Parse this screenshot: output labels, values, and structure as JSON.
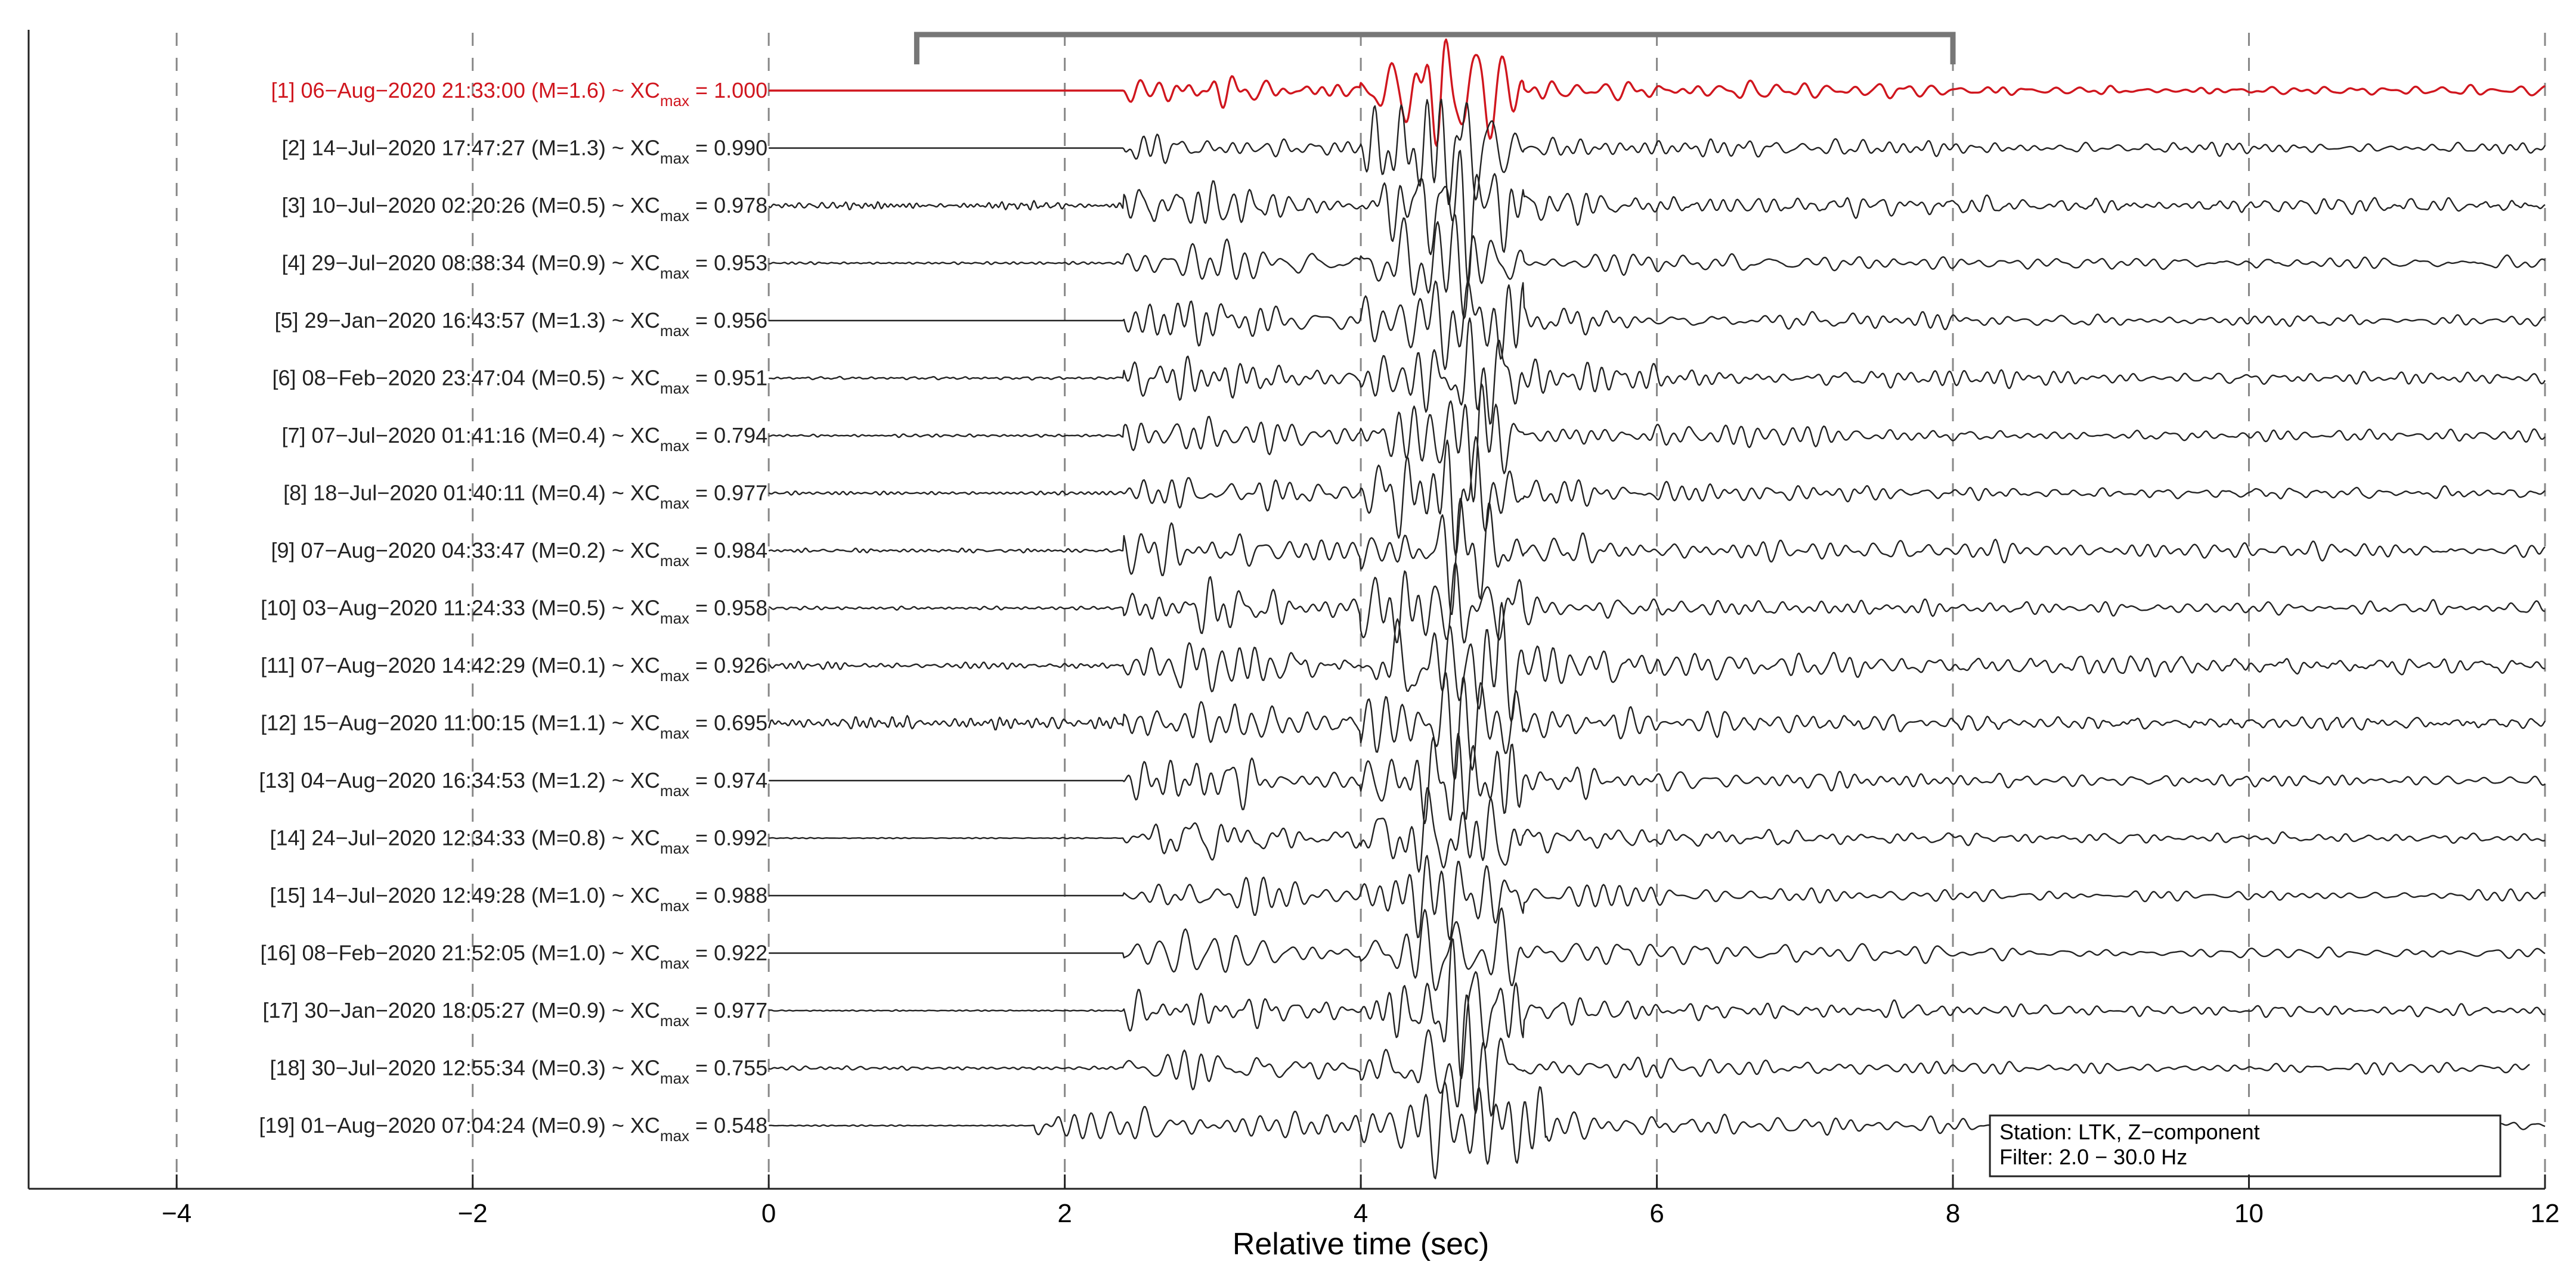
{
  "chart_data": {
    "type": "line",
    "chart_subtype": "waveform_stack",
    "xlabel": "Relative time (sec)",
    "xlim": [
      -5,
      12
    ],
    "xticks": [
      -4,
      -2,
      0,
      2,
      4,
      6,
      8,
      10,
      12
    ],
    "xtick_labels": [
      "−4",
      "−2",
      "0",
      "2",
      "4",
      "6",
      "8",
      "10",
      "12"
    ],
    "grid": "vertical dashed at x ticks",
    "colors": {
      "reference_trace": "#d0161e",
      "trace": "#222222",
      "grid": "#888888",
      "bracket": "#777777"
    },
    "bracket": {
      "x_start": 1.0,
      "x_end": 8.0
    },
    "info_box": {
      "placement": "bottom-right",
      "line1": "Station: LTK, Z−component",
      "line2": "Filter: 2.0 − 30.0 Hz"
    },
    "traces": [
      {
        "index": 1,
        "label": "[1] 06−Aug−2020 21:33:00 (M=1.6) ~ XC",
        "xc_value": "1.000",
        "highlight": true,
        "waveform": {
          "x_start": 0.0,
          "x_end": 12.0,
          "onset": 2.4,
          "peak_time": 4.8,
          "amplitude": 1.0,
          "pre_noise": 0.0,
          "coda_amp": 0.22
        }
      },
      {
        "index": 2,
        "label": "[2] 14−Jul−2020 17:47:27 (M=1.3) ~ XC",
        "xc_value": "0.990",
        "waveform": {
          "x_start": 0.0,
          "x_end": 12.0,
          "onset": 2.4,
          "peak_time": 4.8,
          "amplitude": 1.0,
          "pre_noise": 0.0,
          "coda_amp": 0.25
        }
      },
      {
        "index": 3,
        "label": "[3] 10−Jul−2020 02:20:26 (M=0.5) ~ XC",
        "xc_value": "0.978",
        "waveform": {
          "x_start": 0.0,
          "x_end": 12.0,
          "onset": 2.4,
          "peak_time": 4.8,
          "amplitude": 1.0,
          "pre_noise": 0.12,
          "coda_amp": 0.3
        }
      },
      {
        "index": 4,
        "label": "[4] 29−Jul−2020 08:38:34 (M=0.9) ~ XC",
        "xc_value": "0.953",
        "waveform": {
          "x_start": 0.0,
          "x_end": 12.0,
          "onset": 2.4,
          "peak_time": 4.8,
          "amplitude": 1.0,
          "pre_noise": 0.04,
          "coda_amp": 0.25
        }
      },
      {
        "index": 5,
        "label": "[5] 29−Jan−2020 16:43:57 (M=1.3) ~ XC",
        "xc_value": "0.956",
        "waveform": {
          "x_start": 0.0,
          "x_end": 12.0,
          "onset": 2.4,
          "peak_time": 4.8,
          "amplitude": 1.0,
          "pre_noise": 0.0,
          "coda_amp": 0.25
        }
      },
      {
        "index": 6,
        "label": "[6] 08−Feb−2020 23:47:04 (M=0.5) ~ XC",
        "xc_value": "0.951",
        "waveform": {
          "x_start": 0.0,
          "x_end": 12.0,
          "onset": 2.4,
          "peak_time": 4.8,
          "amplitude": 1.0,
          "pre_noise": 0.06,
          "coda_amp": 0.28
        }
      },
      {
        "index": 7,
        "label": "[7] 07−Jul−2020 01:41:16 (M=0.4) ~ XC",
        "xc_value": "0.794",
        "waveform": {
          "x_start": 0.0,
          "x_end": 12.0,
          "onset": 2.4,
          "peak_time": 4.8,
          "amplitude": 1.0,
          "pre_noise": 0.05,
          "coda_amp": 0.3
        }
      },
      {
        "index": 8,
        "label": "[8] 18−Jul−2020 01:40:11 (M=0.4) ~ XC",
        "xc_value": "0.977",
        "waveform": {
          "x_start": 0.0,
          "x_end": 12.0,
          "onset": 2.4,
          "peak_time": 4.8,
          "amplitude": 1.0,
          "pre_noise": 0.07,
          "coda_amp": 0.28
        }
      },
      {
        "index": 9,
        "label": "[9] 07−Aug−2020 04:33:47 (M=0.2) ~ XC",
        "xc_value": "0.984",
        "waveform": {
          "x_start": 0.0,
          "x_end": 12.0,
          "onset": 2.4,
          "peak_time": 4.8,
          "amplitude": 1.0,
          "pre_noise": 0.06,
          "coda_amp": 0.3
        }
      },
      {
        "index": 10,
        "label": "[10] 03−Aug−2020 11:24:33 (M=0.5) ~ XC",
        "xc_value": "0.958",
        "waveform": {
          "x_start": 0.0,
          "x_end": 12.0,
          "onset": 2.4,
          "peak_time": 4.8,
          "amplitude": 1.0,
          "pre_noise": 0.06,
          "coda_amp": 0.28
        }
      },
      {
        "index": 11,
        "label": "[11] 07−Aug−2020 14:42:29 (M=0.1) ~ XC",
        "xc_value": "0.926",
        "waveform": {
          "x_start": 0.0,
          "x_end": 12.0,
          "onset": 2.4,
          "peak_time": 4.8,
          "amplitude": 1.0,
          "pre_noise": 0.14,
          "coda_amp": 0.34
        }
      },
      {
        "index": 12,
        "label": "[12] 15−Aug−2020 11:00:15 (M=1.1) ~ XC",
        "xc_value": "0.695",
        "waveform": {
          "x_start": 0.0,
          "x_end": 12.0,
          "onset": 2.4,
          "peak_time": 4.8,
          "amplitude": 1.0,
          "pre_noise": 0.22,
          "coda_amp": 0.3
        }
      },
      {
        "index": 13,
        "label": "[13] 04−Aug−2020 16:34:53 (M=1.2) ~ XC",
        "xc_value": "0.974",
        "waveform": {
          "x_start": 0.0,
          "x_end": 12.0,
          "onset": 2.4,
          "peak_time": 4.8,
          "amplitude": 1.0,
          "pre_noise": 0.0,
          "coda_amp": 0.25
        }
      },
      {
        "index": 14,
        "label": "[14] 24−Jul−2020 12:34:33 (M=0.8) ~ XC",
        "xc_value": "0.992",
        "waveform": {
          "x_start": 0.0,
          "x_end": 12.0,
          "onset": 2.4,
          "peak_time": 4.8,
          "amplitude": 1.0,
          "pre_noise": 0.02,
          "coda_amp": 0.26
        }
      },
      {
        "index": 15,
        "label": "[15] 14−Jul−2020 12:49:28 (M=1.0) ~ XC",
        "xc_value": "0.988",
        "waveform": {
          "x_start": 0.0,
          "x_end": 12.0,
          "onset": 2.4,
          "peak_time": 4.8,
          "amplitude": 1.0,
          "pre_noise": 0.0,
          "coda_amp": 0.25
        }
      },
      {
        "index": 16,
        "label": "[16] 08−Feb−2020 21:52:05 (M=1.0) ~ XC",
        "xc_value": "0.922",
        "waveform": {
          "x_start": 0.0,
          "x_end": 12.0,
          "onset": 2.4,
          "peak_time": 4.8,
          "amplitude": 1.0,
          "pre_noise": 0.0,
          "coda_amp": 0.26
        }
      },
      {
        "index": 17,
        "label": "[17] 30−Jan−2020 18:05:27 (M=0.9) ~ XC",
        "xc_value": "0.977",
        "waveform": {
          "x_start": 0.0,
          "x_end": 12.0,
          "onset": 2.4,
          "peak_time": 4.8,
          "amplitude": 1.0,
          "pre_noise": 0.02,
          "coda_amp": 0.26
        }
      },
      {
        "index": 18,
        "label": "[18] 30−Jul−2020 12:55:34 (M=0.3) ~ XC",
        "xc_value": "0.755",
        "waveform": {
          "x_start": 0.0,
          "x_end": 11.9,
          "onset": 2.4,
          "peak_time": 4.8,
          "amplitude": 1.0,
          "pre_noise": 0.08,
          "coda_amp": 0.3
        }
      },
      {
        "index": 19,
        "label": "[19] 01−Aug−2020 07:04:24 (M=0.9) ~ XC",
        "xc_value": "0.548",
        "waveform": {
          "x_start": 0.0,
          "x_end": 12.0,
          "onset": 1.8,
          "peak_time": 4.95,
          "amplitude": 1.0,
          "pre_noise": 0.02,
          "coda_amp": 0.32
        }
      }
    ]
  },
  "labels": {
    "xc_subscript": "max",
    "equals": " = "
  }
}
